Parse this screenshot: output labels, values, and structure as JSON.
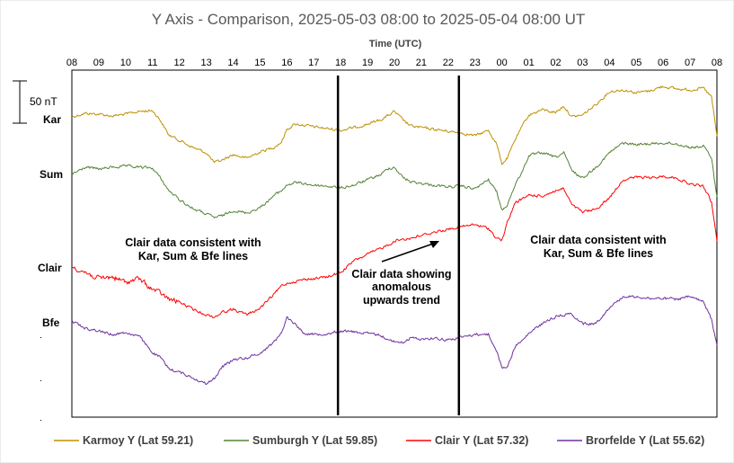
{
  "chart_data": {
    "type": "line",
    "title": "Y Axis - Comparison,  2025-05-03 08:00 to 2025-05-04 08:00 UT",
    "xlabel": "Time (UTC)",
    "ylabel": "",
    "x_ticks": [
      "08",
      "09",
      "10",
      "11",
      "12",
      "13",
      "14",
      "15",
      "16",
      "17",
      "18",
      "19",
      "20",
      "21",
      "22",
      "23",
      "00",
      "01",
      "02",
      "03",
      "04",
      "05",
      "06",
      "07",
      "08"
    ],
    "x_unit": "hours since 2025-05-03 08:00 UT",
    "x_range": [
      0,
      24
    ],
    "scale_bar": {
      "label": "50 nT",
      "value_nT": 50
    },
    "series": [
      {
        "name": "Karmoy Y (Lat 59.21)",
        "station_label": "Kar",
        "color": "#bf9000",
        "points": [
          [
            0,
            130
          ],
          [
            0.5,
            126
          ],
          [
            1,
            127
          ],
          [
            1.5,
            129
          ],
          [
            2,
            127
          ],
          [
            2.5,
            124
          ],
          [
            3,
            123
          ],
          [
            3.3,
            134
          ],
          [
            3.6,
            150
          ],
          [
            4,
            156
          ],
          [
            4.5,
            164
          ],
          [
            5,
            170
          ],
          [
            5.3,
            181
          ],
          [
            5.6,
            178
          ],
          [
            6,
            172
          ],
          [
            6.5,
            176
          ],
          [
            7,
            169
          ],
          [
            7.5,
            164
          ],
          [
            7.8,
            158
          ],
          [
            8,
            144
          ],
          [
            8.3,
            138
          ],
          [
            8.6,
            139
          ],
          [
            9,
            141
          ],
          [
            9.5,
            143
          ],
          [
            10,
            145
          ],
          [
            10.5,
            142
          ],
          [
            11,
            138
          ],
          [
            11.5,
            133
          ],
          [
            11.8,
            128
          ],
          [
            12,
            124
          ],
          [
            12.3,
            133
          ],
          [
            12.6,
            140
          ],
          [
            13,
            142
          ],
          [
            13.5,
            144
          ],
          [
            14,
            146
          ],
          [
            14.5,
            148
          ],
          [
            15,
            151
          ],
          [
            15.5,
            145
          ],
          [
            15.8,
            160
          ],
          [
            16,
            182
          ],
          [
            16.2,
            176
          ],
          [
            16.5,
            155
          ],
          [
            16.8,
            138
          ],
          [
            17,
            128
          ],
          [
            17.5,
            122
          ],
          [
            18,
            125
          ],
          [
            18.3,
            118
          ],
          [
            18.6,
            130
          ],
          [
            19,
            128
          ],
          [
            19.5,
            116
          ],
          [
            20,
            102
          ],
          [
            20.5,
            100
          ],
          [
            21,
            103
          ],
          [
            21.5,
            101
          ],
          [
            22,
            96
          ],
          [
            22.5,
            99
          ],
          [
            23,
            100
          ],
          [
            23.5,
            98
          ],
          [
            23.8,
            108
          ],
          [
            24,
            152
          ]
        ]
      },
      {
        "name": "Sumburgh Y (Lat 59.85)",
        "station_label": "Sum",
        "color": "#548235",
        "points": [
          [
            0,
            194
          ],
          [
            0.5,
            186
          ],
          [
            1,
            188
          ],
          [
            1.5,
            186
          ],
          [
            2,
            185
          ],
          [
            2.5,
            186
          ],
          [
            3,
            187
          ],
          [
            3.3,
            198
          ],
          [
            3.6,
            212
          ],
          [
            4,
            222
          ],
          [
            4.5,
            232
          ],
          [
            5,
            238
          ],
          [
            5.3,
            242
          ],
          [
            5.6,
            240
          ],
          [
            6,
            234
          ],
          [
            6.5,
            237
          ],
          [
            7,
            231
          ],
          [
            7.5,
            218
          ],
          [
            7.8,
            212
          ],
          [
            8,
            206
          ],
          [
            8.3,
            203
          ],
          [
            8.6,
            204
          ],
          [
            9,
            206
          ],
          [
            9.5,
            207
          ],
          [
            10,
            209
          ],
          [
            10.5,
            206
          ],
          [
            11,
            200
          ],
          [
            11.5,
            194
          ],
          [
            11.8,
            187
          ],
          [
            12,
            186
          ],
          [
            12.3,
            197
          ],
          [
            12.6,
            202
          ],
          [
            13,
            204
          ],
          [
            13.5,
            206
          ],
          [
            14,
            208
          ],
          [
            14.5,
            207
          ],
          [
            15,
            210
          ],
          [
            15.5,
            200
          ],
          [
            15.8,
            213
          ],
          [
            16,
            234
          ],
          [
            16.2,
            228
          ],
          [
            16.5,
            205
          ],
          [
            16.8,
            188
          ],
          [
            17,
            173
          ],
          [
            17.5,
            170
          ],
          [
            18,
            175
          ],
          [
            18.3,
            170
          ],
          [
            18.6,
            190
          ],
          [
            19,
            198
          ],
          [
            19.5,
            186
          ],
          [
            20,
            170
          ],
          [
            20.5,
            159
          ],
          [
            21,
            161
          ],
          [
            21.5,
            160
          ],
          [
            22,
            159
          ],
          [
            22.5,
            160
          ],
          [
            23,
            164
          ],
          [
            23.5,
            163
          ],
          [
            23.8,
            175
          ],
          [
            24,
            220
          ]
        ]
      },
      {
        "name": "Clair Y (Lat 57.32)",
        "station_label": "Clair",
        "color": "#ff0000",
        "points": [
          [
            0,
            296
          ],
          [
            0.5,
            303
          ],
          [
            1,
            310
          ],
          [
            1.5,
            308
          ],
          [
            2,
            314
          ],
          [
            2.5,
            310
          ],
          [
            3,
            322
          ],
          [
            3.3,
            326
          ],
          [
            3.6,
            333
          ],
          [
            4,
            336
          ],
          [
            4.5,
            344
          ],
          [
            5,
            350
          ],
          [
            5.3,
            353
          ],
          [
            5.6,
            347
          ],
          [
            6,
            344
          ],
          [
            6.5,
            350
          ],
          [
            7,
            343
          ],
          [
            7.5,
            328
          ],
          [
            7.8,
            318
          ],
          [
            8,
            315
          ],
          [
            8.3,
            313
          ],
          [
            8.6,
            311
          ],
          [
            9,
            310
          ],
          [
            9.5,
            308
          ],
          [
            10,
            303
          ],
          [
            10.5,
            290
          ],
          [
            11,
            283
          ],
          [
            11.5,
            276
          ],
          [
            11.8,
            272
          ],
          [
            12,
            268
          ],
          [
            12.3,
            266
          ],
          [
            12.6,
            265
          ],
          [
            13,
            262
          ],
          [
            13.5,
            258
          ],
          [
            14,
            255
          ],
          [
            14.5,
            252
          ],
          [
            15,
            250
          ],
          [
            15.5,
            254
          ],
          [
            15.8,
            265
          ],
          [
            16,
            267
          ],
          [
            16.2,
            248
          ],
          [
            16.5,
            225
          ],
          [
            16.8,
            221
          ],
          [
            17,
            217
          ],
          [
            17.5,
            218
          ],
          [
            18,
            212
          ],
          [
            18.3,
            210
          ],
          [
            18.6,
            228
          ],
          [
            19,
            236
          ],
          [
            19.5,
            233
          ],
          [
            20,
            220
          ],
          [
            20.5,
            200
          ],
          [
            21,
            197
          ],
          [
            21.5,
            198
          ],
          [
            22,
            196
          ],
          [
            22.5,
            198
          ],
          [
            23,
            205
          ],
          [
            23.5,
            207
          ],
          [
            23.8,
            225
          ],
          [
            24,
            268
          ]
        ]
      },
      {
        "name": "Brorfelde Y (Lat 55.62)",
        "station_label": "Bfe",
        "color": "#7030a0",
        "points": [
          [
            0,
            357
          ],
          [
            0.5,
            365
          ],
          [
            1,
            368
          ],
          [
            1.5,
            372
          ],
          [
            2,
            370
          ],
          [
            2.5,
            374
          ],
          [
            3,
            392
          ],
          [
            3.3,
            398
          ],
          [
            3.6,
            410
          ],
          [
            4,
            414
          ],
          [
            4.5,
            420
          ],
          [
            5,
            427
          ],
          [
            5.3,
            421
          ],
          [
            5.6,
            408
          ],
          [
            6,
            400
          ],
          [
            6.5,
            398
          ],
          [
            7,
            393
          ],
          [
            7.5,
            381
          ],
          [
            7.8,
            370
          ],
          [
            8,
            353
          ],
          [
            8.3,
            360
          ],
          [
            8.6,
            370
          ],
          [
            9,
            372
          ],
          [
            9.5,
            371
          ],
          [
            10,
            368
          ],
          [
            10.5,
            369
          ],
          [
            11,
            371
          ],
          [
            11.5,
            373
          ],
          [
            11.8,
            378
          ],
          [
            12,
            380
          ],
          [
            12.3,
            381
          ],
          [
            12.6,
            376
          ],
          [
            13,
            377
          ],
          [
            13.5,
            376
          ],
          [
            14,
            378
          ],
          [
            14.5,
            375
          ],
          [
            15,
            372
          ],
          [
            15.5,
            372
          ],
          [
            15.8,
            390
          ],
          [
            16,
            409
          ],
          [
            16.2,
            408
          ],
          [
            16.5,
            385
          ],
          [
            16.8,
            378
          ],
          [
            17,
            371
          ],
          [
            17.5,
            360
          ],
          [
            18,
            352
          ],
          [
            18.3,
            350
          ],
          [
            18.6,
            349
          ],
          [
            19,
            360
          ],
          [
            19.5,
            360
          ],
          [
            20,
            342
          ],
          [
            20.5,
            330
          ],
          [
            21,
            330
          ],
          [
            21.5,
            332
          ],
          [
            22,
            332
          ],
          [
            22.5,
            333
          ],
          [
            23,
            330
          ],
          [
            23.5,
            336
          ],
          [
            23.8,
            355
          ],
          [
            24,
            385
          ]
        ]
      }
    ],
    "annotations": [
      {
        "lines": [
          "Clair data consistent with",
          "Kar, Sum & Bfe lines"
        ]
      },
      {
        "lines": [
          "Clair data showing",
          "anomalous",
          "upwards trend"
        ]
      },
      {
        "lines": [
          "Clair data consistent with",
          "Kar, Sum & Bfe lines"
        ]
      }
    ],
    "markers": [
      {
        "type": "vertical_line",
        "x_hours": 9.9
      },
      {
        "type": "vertical_line",
        "x_hours": 14.4
      }
    ]
  }
}
